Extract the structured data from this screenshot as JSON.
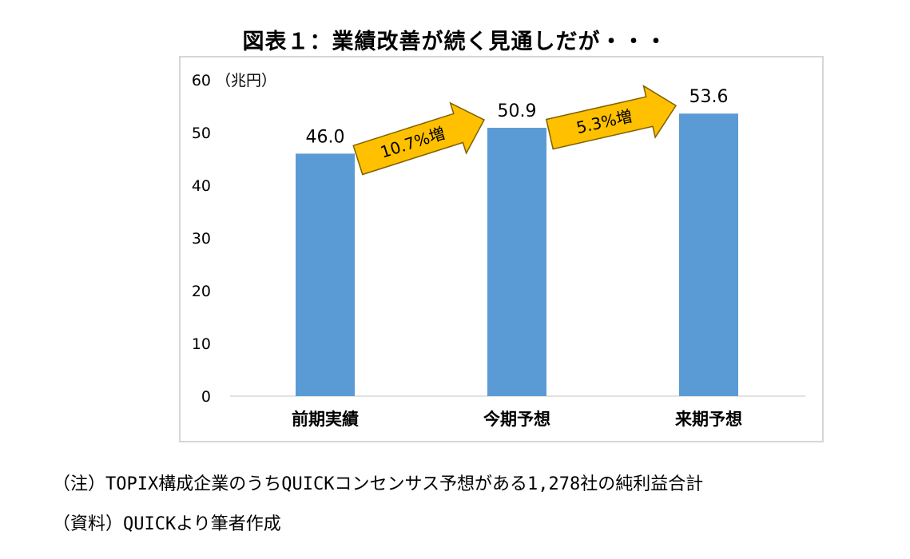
{
  "title": "図表１：業績改善が続く見通しだが・・・",
  "chart_data": {
    "type": "bar",
    "ylabel": "（兆円）",
    "ylim": [
      0,
      60
    ],
    "yticks": [
      "0",
      "10",
      "20",
      "30",
      "40",
      "50",
      "60"
    ],
    "categories": [
      "前期実績",
      "今期予想",
      "来期予想"
    ],
    "values": [
      46.0,
      50.9,
      53.6
    ],
    "value_labels": [
      "46.0",
      "50.9",
      "53.6"
    ],
    "bar_color": "#5b9bd5",
    "arrow_color": "#ffc000",
    "arrows": [
      {
        "from": 0,
        "to": 1,
        "label": "10.7%増"
      },
      {
        "from": 1,
        "to": 2,
        "label": "5.3%増"
      }
    ]
  },
  "notes": {
    "note": "（注）TOPIX構成企業のうちQUICKコンセンサス予想がある1,278社の純利益合計",
    "source": "（資料）QUICKより筆者作成"
  }
}
